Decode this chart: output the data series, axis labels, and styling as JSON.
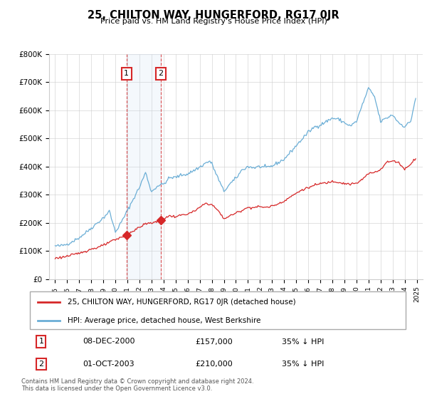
{
  "title": "25, CHILTON WAY, HUNGERFORD, RG17 0JR",
  "subtitle": "Price paid vs. HM Land Registry's House Price Index (HPI)",
  "hpi_label": "HPI: Average price, detached house, West Berkshire",
  "price_label": "25, CHILTON WAY, HUNGERFORD, RG17 0JR (detached house)",
  "footer1": "Contains HM Land Registry data © Crown copyright and database right 2024.",
  "footer2": "This data is licensed under the Open Government Licence v3.0.",
  "sale1_date": "08-DEC-2000",
  "sale1_price": "£157,000",
  "sale1_hpi": "35% ↓ HPI",
  "sale2_date": "01-OCT-2003",
  "sale2_price": "£210,000",
  "sale2_hpi": "35% ↓ HPI",
  "sale1_x": 2000.917,
  "sale1_y": 157000,
  "sale2_x": 2003.75,
  "sale2_y": 210000,
  "hpi_color": "#6baed6",
  "price_color": "#d62728",
  "shade_color": "#c6dbef",
  "ylim_min": 0,
  "ylim_max": 800000,
  "xlim_min": 1994.5,
  "xlim_max": 2025.5,
  "yticks": [
    0,
    100000,
    200000,
    300000,
    400000,
    500000,
    600000,
    700000,
    800000
  ],
  "ytick_labels": [
    "£0",
    "£100K",
    "£200K",
    "£300K",
    "£400K",
    "£500K",
    "£600K",
    "£700K",
    "£800K"
  ],
  "xticks": [
    1995,
    1996,
    1997,
    1998,
    1999,
    2000,
    2001,
    2002,
    2003,
    2004,
    2005,
    2006,
    2007,
    2008,
    2009,
    2010,
    2011,
    2012,
    2013,
    2014,
    2015,
    2016,
    2017,
    2018,
    2019,
    2020,
    2021,
    2022,
    2023,
    2024,
    2025
  ]
}
